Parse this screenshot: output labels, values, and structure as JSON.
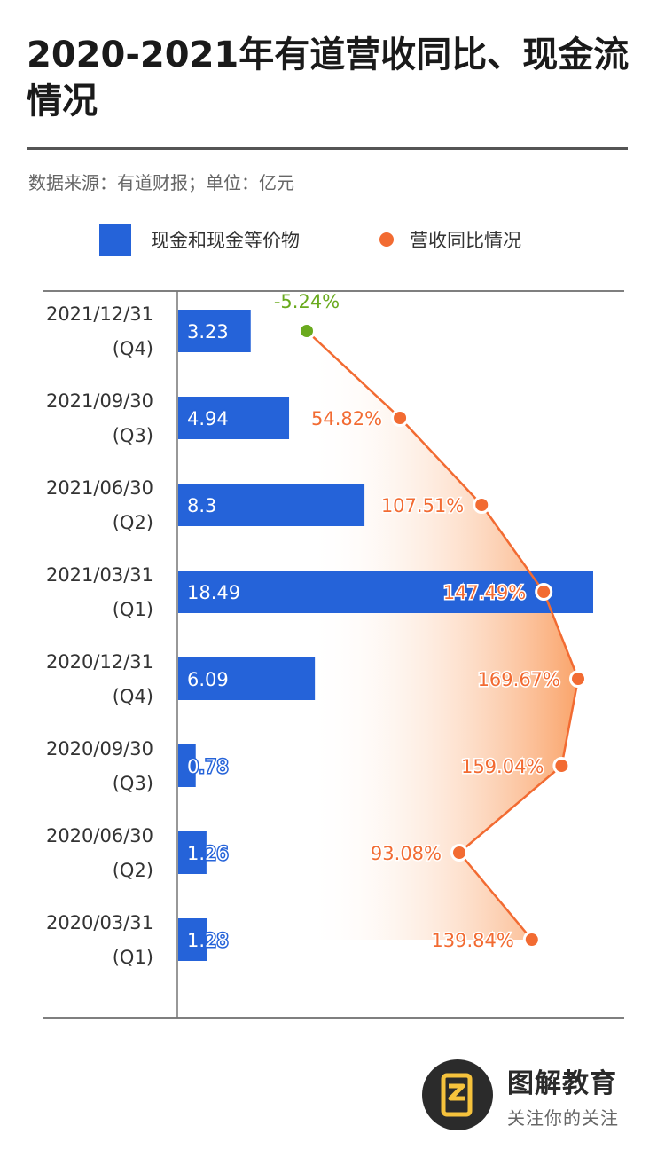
{
  "title": "2020-2021年有道营收同比、现金流情况",
  "source": "数据来源：有道财报；单位：亿元",
  "legend": {
    "bar_label": "现金和现金等价物",
    "dot_label": "营收同比情况"
  },
  "brand": {
    "name": "图解教育",
    "slogan": "关注你的关注"
  },
  "colors": {
    "bar": "#2563d9",
    "line": "#f26b32",
    "negative": "#6aaa1e"
  },
  "chart_data": {
    "type": "bar",
    "categories": [
      [
        "2021/12/31",
        "(Q4)"
      ],
      [
        "2021/09/30",
        "(Q3)"
      ],
      [
        "2021/06/30",
        "(Q2)"
      ],
      [
        "2021/03/31",
        "(Q1)"
      ],
      [
        "2020/12/31",
        "(Q4)"
      ],
      [
        "2020/09/30",
        "(Q3)"
      ],
      [
        "2020/06/30",
        "(Q2)"
      ],
      [
        "2020/03/31",
        "(Q1)"
      ]
    ],
    "series": [
      {
        "name": "现金和现金等价物",
        "type": "bar",
        "values": [
          3.23,
          4.94,
          8.3,
          18.49,
          6.09,
          0.78,
          1.26,
          1.28
        ],
        "labels": [
          "3.23",
          "4.94",
          "8.3",
          "18.49",
          "6.09",
          "0.78",
          "1.26",
          "1.28"
        ]
      },
      {
        "name": "营收同比情况",
        "type": "line",
        "values": [
          -5.24,
          54.82,
          107.51,
          147.49,
          169.67,
          159.04,
          93.08,
          139.84
        ],
        "labels": [
          "-5.24%",
          "54.82%",
          "107.51%",
          "147.49%",
          "169.67%",
          "159.04%",
          "93.08%",
          "139.84%"
        ]
      }
    ],
    "orientation": "horizontal",
    "grid": false,
    "legend_position": "top"
  }
}
